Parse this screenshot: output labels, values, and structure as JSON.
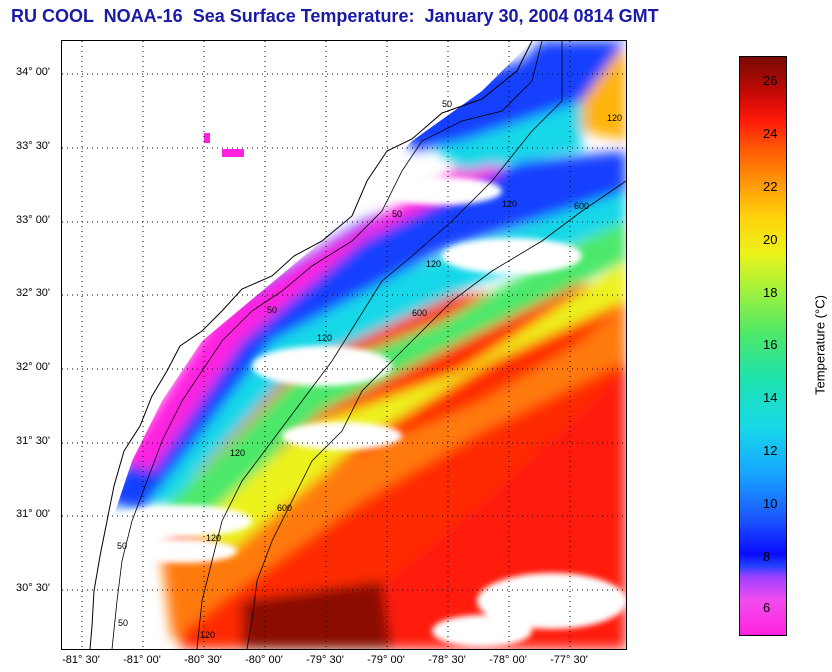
{
  "title": "RU COOL  NOAA-16  Sea Surface Temperature:  January 30, 2004 0814 GMT",
  "map": {
    "lat_labels": [
      "34° 00'",
      "33° 30'",
      "33° 00'",
      "32° 30'",
      "32° 00'",
      "31° 30'",
      "31° 00'",
      "30° 30'"
    ],
    "lon_labels": [
      "-81° 30'",
      "-81° 00'",
      "-80° 30'",
      "-80° 00'",
      "-79° 30'",
      "-79° 00'",
      "-78° 30'",
      "-78° 00'",
      "-77° 30'"
    ],
    "isobath_labels": [
      "50",
      "120",
      "600"
    ],
    "colors": {
      "cold": "#ff22e0",
      "blue": "#1840ff",
      "cyan": "#18d8e8",
      "green": "#4ce86a",
      "yellow": "#ecf21a",
      "orange": "#ff9a08",
      "red": "#ff1a08",
      "darkred": "#8a0a04",
      "cloud": "#ffffff",
      "land": "#ffffff"
    }
  },
  "colorbar": {
    "label": "Temperature (°C)",
    "ticks": [
      "6",
      "8",
      "10",
      "12",
      "14",
      "16",
      "18",
      "20",
      "22",
      "24",
      "26"
    ]
  }
}
